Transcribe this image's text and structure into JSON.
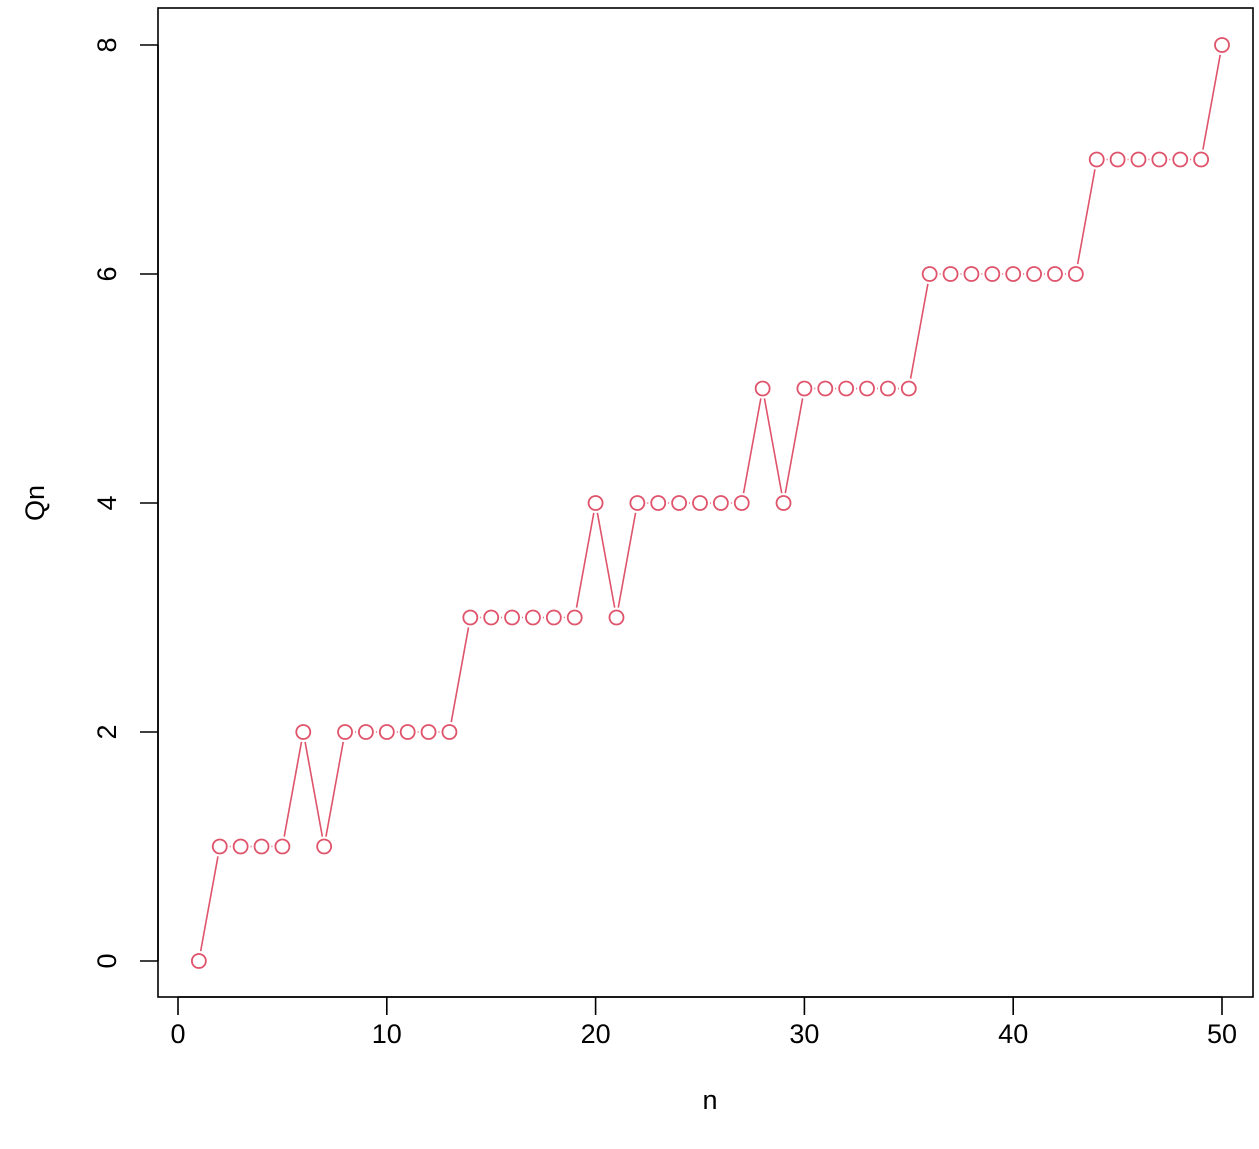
{
  "colors": {
    "series": "#df536b",
    "axis": "#000000",
    "background": "#ffffff"
  },
  "chart_data": {
    "type": "line",
    "xlabel": "n",
    "ylabel": "Qn",
    "xlim": [
      0,
      50
    ],
    "ylim": [
      0,
      8
    ],
    "xticks": [
      0,
      10,
      20,
      30,
      40,
      50
    ],
    "yticks": [
      0,
      2,
      4,
      6,
      8
    ],
    "grid": false,
    "legend": "none",
    "x": [
      1,
      2,
      3,
      4,
      5,
      6,
      7,
      8,
      9,
      10,
      11,
      12,
      13,
      14,
      15,
      16,
      17,
      18,
      19,
      20,
      21,
      22,
      23,
      24,
      25,
      26,
      27,
      28,
      29,
      30,
      31,
      32,
      33,
      34,
      35,
      36,
      37,
      38,
      39,
      40,
      41,
      42,
      43,
      44,
      45,
      46,
      47,
      48,
      49,
      50
    ],
    "series": [
      {
        "values": [
          0,
          1,
          1,
          1,
          1,
          2,
          1,
          2,
          2,
          2,
          2,
          2,
          2,
          3,
          3,
          3,
          3,
          3,
          3,
          4,
          3,
          4,
          4,
          4,
          4,
          4,
          4,
          5,
          4,
          5,
          5,
          5,
          5,
          5,
          5,
          6,
          6,
          6,
          6,
          6,
          6,
          6,
          6,
          7,
          7,
          7,
          7,
          7,
          7,
          8
        ]
      }
    ]
  }
}
